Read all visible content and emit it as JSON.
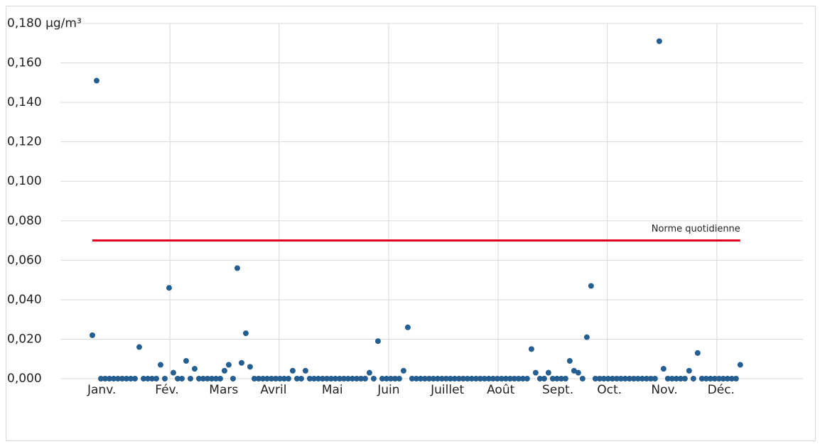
{
  "chart_data": {
    "type": "scatter",
    "values": [
      0.022,
      0.151,
      0,
      0,
      0,
      0,
      0,
      0,
      0,
      0,
      0,
      0.016,
      0,
      0,
      0,
      0,
      0.007,
      0,
      0.046,
      0.003,
      0,
      0,
      0.009,
      0,
      0.005,
      0,
      0,
      0,
      0,
      0,
      0,
      0.004,
      0.007,
      0,
      0.056,
      0.008,
      0.023,
      0.006,
      0,
      0,
      0,
      0,
      0,
      0,
      0,
      0,
      0,
      0.004,
      0,
      0,
      0.004,
      0,
      0,
      0,
      0,
      0,
      0,
      0,
      0,
      0,
      0,
      0,
      0,
      0,
      0,
      0.003,
      0,
      0.019,
      0,
      0,
      0,
      0,
      0,
      0.004,
      0.026,
      0,
      0,
      0,
      0,
      0,
      0,
      0,
      0,
      0,
      0,
      0,
      0,
      0,
      0,
      0,
      0,
      0,
      0,
      0,
      0,
      0,
      0,
      0,
      0,
      0,
      0,
      0,
      0,
      0.015,
      0.003,
      0,
      0,
      0.003,
      0,
      0,
      0,
      0,
      0.009,
      0.004,
      0.003,
      0,
      0.021,
      0.047,
      0,
      0,
      0,
      0,
      0,
      0,
      0,
      0,
      0,
      0,
      0,
      0,
      0,
      0,
      0,
      0.171,
      0.005,
      0,
      0,
      0,
      0,
      0,
      0.004,
      0,
      0.013,
      0,
      0,
      0,
      0,
      0,
      0,
      0,
      0,
      0,
      0.007
    ],
    "color": "#255e91",
    "xlim": [
      -7.5,
      166.7
    ],
    "xticks": [
      {
        "value": 2.2,
        "label": "Janv."
      },
      {
        "value": 17.5,
        "label": "Fév."
      },
      {
        "value": 30.8,
        "label": "Mars"
      },
      {
        "value": 42.5,
        "label": "Avril"
      },
      {
        "value": 56.3,
        "label": "Mai"
      },
      {
        "value": 69.5,
        "label": "Juin"
      },
      {
        "value": 83.3,
        "label": "Juillet"
      },
      {
        "value": 95.8,
        "label": "Août"
      },
      {
        "value": 109.2,
        "label": "Sept."
      },
      {
        "value": 121.3,
        "label": "Oct."
      },
      {
        "value": 134.2,
        "label": "Nov."
      },
      {
        "value": 147.5,
        "label": "Déc."
      }
    ],
    "xgrid": [
      18.2,
      43.8,
      69.5,
      95.2,
      120.8,
      146.5
    ],
    "ylim": [
      0,
      0.18
    ],
    "yticks": [
      {
        "value": 0,
        "label": "0,000"
      },
      {
        "value": 0.02,
        "label": "0,020"
      },
      {
        "value": 0.04,
        "label": "0,040"
      },
      {
        "value": 0.06,
        "label": "0,060"
      },
      {
        "value": 0.08,
        "label": "0,080"
      },
      {
        "value": 0.1,
        "label": "0,100"
      },
      {
        "value": 0.12,
        "label": "0,120"
      },
      {
        "value": 0.14,
        "label": "0,140"
      },
      {
        "value": 0.16,
        "label": "0,160"
      },
      {
        "value": 0.18,
        "label": "0,180 µg/m³"
      }
    ],
    "grid": true,
    "reference_line": {
      "value": 0.07,
      "label": "Norme quotidienne",
      "color": "#e0001a"
    }
  }
}
